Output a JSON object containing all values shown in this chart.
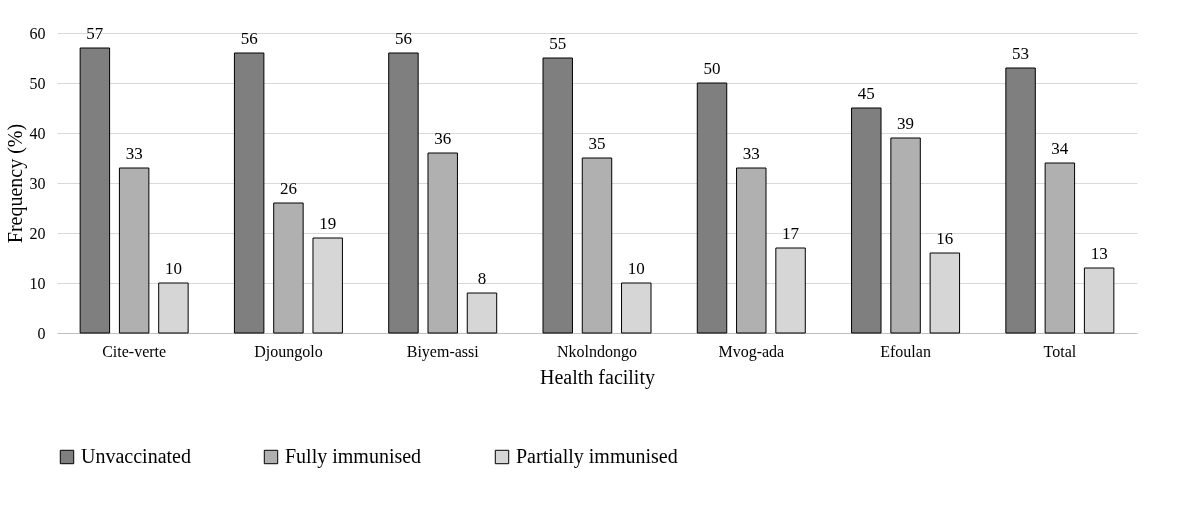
{
  "chart_data": {
    "type": "bar",
    "xlabel": "Health facility",
    "ylabel": "Frequency (%)",
    "categories": [
      "Cite-verte",
      "Djoungolo",
      "Biyem-assi",
      "Nkolndongo",
      "Mvog-ada",
      "Efoulan",
      "Total"
    ],
    "series": [
      {
        "name": "Unvaccinated",
        "color": "#7f7f7f",
        "values": [
          57,
          56,
          56,
          55,
          50,
          45,
          53
        ]
      },
      {
        "name": "Fully immunised",
        "color": "#b0b0b0",
        "values": [
          33,
          26,
          36,
          35,
          33,
          39,
          34
        ]
      },
      {
        "name": "Partially immunised",
        "color": "#d6d6d6",
        "values": [
          10,
          19,
          8,
          10,
          17,
          16,
          13
        ]
      }
    ],
    "ylim": [
      0,
      60
    ],
    "yticks": [
      0,
      10,
      20,
      30,
      40,
      50,
      60
    ],
    "grid": "y",
    "legend": "bottom",
    "data_labels": true
  }
}
